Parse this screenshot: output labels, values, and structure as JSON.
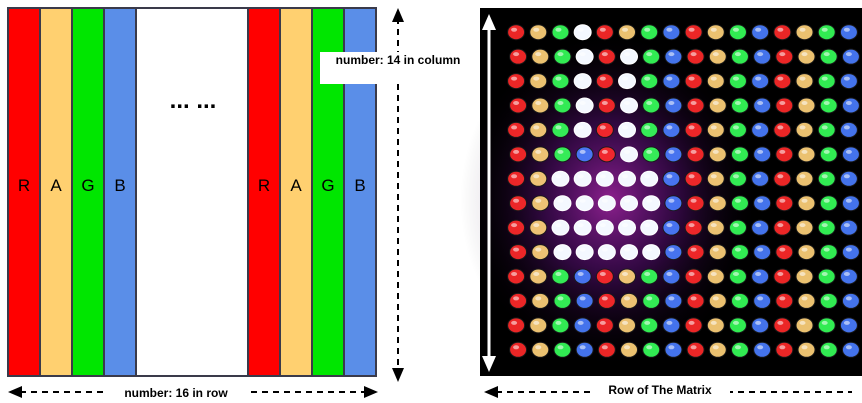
{
  "diagram": {
    "strips_left": [
      {
        "letter": "R",
        "color": "#ff0000"
      },
      {
        "letter": "A",
        "color": "#ffd070"
      },
      {
        "letter": "G",
        "color": "#00e600"
      },
      {
        "letter": "B",
        "color": "#5a8ee8"
      }
    ],
    "strips_right": [
      {
        "letter": "R",
        "color": "#ff0000"
      },
      {
        "letter": "A",
        "color": "#ffd070"
      },
      {
        "letter": "G",
        "color": "#00e600"
      },
      {
        "letter": "B",
        "color": "#5a8ee8"
      }
    ],
    "ellipsis": "... ...",
    "column_label": "number: 14 in column",
    "row_label": "number: 16 in row",
    "photo_label": "Row of The Matrix",
    "photo": {
      "columns": 16,
      "rows": 14,
      "column_colors": [
        "#ff2a2a",
        "#ffd27a",
        "#36ff5a",
        "#4a7dff"
      ],
      "background": "#000000"
    },
    "colors": {
      "outline": "#3a3a4a",
      "arrow": "#000000"
    }
  }
}
